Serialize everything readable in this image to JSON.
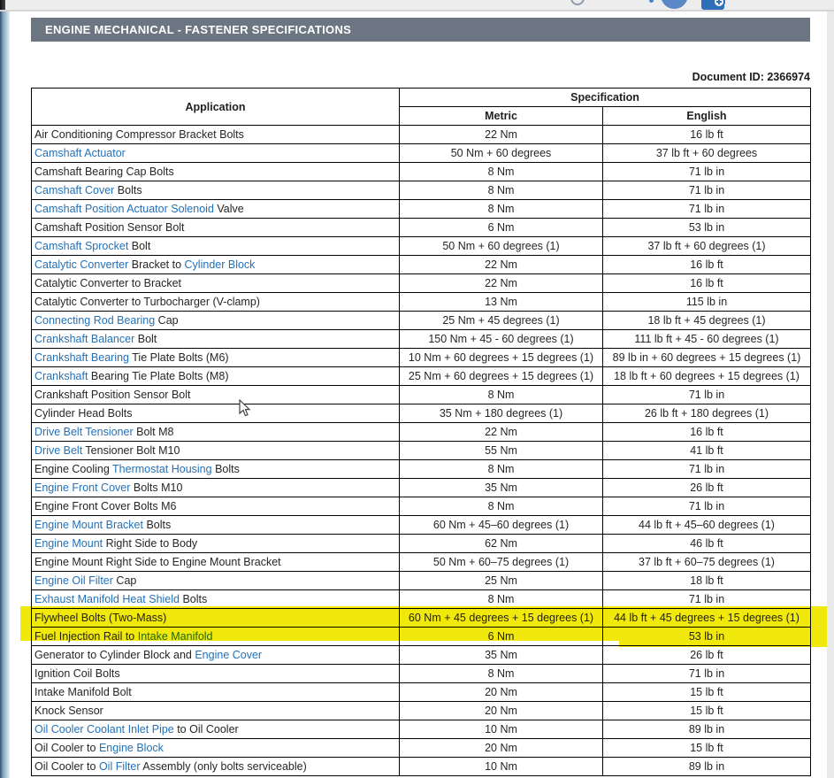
{
  "topbar": {
    "icons": [
      {
        "name": "arc-icon"
      },
      {
        "name": "notification-dot-icon"
      },
      {
        "name": "avatar-circle-icon"
      },
      {
        "name": "bookmark-add-icon"
      }
    ]
  },
  "header": {
    "title": "ENGINE MECHANICAL - FASTENER SPECIFICATIONS"
  },
  "document": {
    "id_label": "Document ID: 2366974"
  },
  "colors": {
    "link": "#2471b8",
    "highlight": "#f2e90c",
    "title_bar_bg": "#6b7682",
    "top_strip_bg": "#ededed",
    "left_strip_blue": "#7fa2bf",
    "icon_blue": "#2d6fb9",
    "avatar_blue": "#5c87c6",
    "border": "#000000"
  },
  "table": {
    "headers": {
      "application": "Application",
      "specification": "Specification",
      "metric": "Metric",
      "english": "English"
    },
    "rows": [
      {
        "segments": [
          {
            "text": "Air Conditioning Compressor Bracket Bolts",
            "link": false
          }
        ],
        "metric": "22 Nm",
        "english": "16 lb ft",
        "highlighted": false
      },
      {
        "segments": [
          {
            "text": "Camshaft Actuator",
            "link": true
          }
        ],
        "metric": "50 Nm + 60 degrees",
        "english": "37 lb ft + 60 degrees",
        "highlighted": false
      },
      {
        "segments": [
          {
            "text": "Camshaft Bearing Cap Bolts",
            "link": false
          }
        ],
        "metric": "8 Nm",
        "english": "71 lb in",
        "highlighted": false
      },
      {
        "segments": [
          {
            "text": "Camshaft Cover",
            "link": true
          },
          {
            "text": " Bolts",
            "link": false
          }
        ],
        "metric": "8 Nm",
        "english": "71 lb in",
        "highlighted": false
      },
      {
        "segments": [
          {
            "text": "Camshaft Position Actuator Solenoid",
            "link": true
          },
          {
            "text": " Valve",
            "link": false
          }
        ],
        "metric": "8 Nm",
        "english": "71 lb in",
        "highlighted": false
      },
      {
        "segments": [
          {
            "text": "Camshaft Position Sensor Bolt",
            "link": false
          }
        ],
        "metric": "6 Nm",
        "english": "53 lb in",
        "highlighted": false
      },
      {
        "segments": [
          {
            "text": "Camshaft Sprocket",
            "link": true
          },
          {
            "text": " Bolt",
            "link": false
          }
        ],
        "metric": "50 Nm + 60 degrees (1)",
        "english": "37 lb ft + 60 degrees (1)",
        "highlighted": false
      },
      {
        "segments": [
          {
            "text": "Catalytic Converter",
            "link": true
          },
          {
            "text": " Bracket to ",
            "link": false
          },
          {
            "text": "Cylinder Block",
            "link": true
          }
        ],
        "metric": "22 Nm",
        "english": "16 lb ft",
        "highlighted": false
      },
      {
        "segments": [
          {
            "text": "Catalytic Converter to Bracket",
            "link": false
          }
        ],
        "metric": "22 Nm",
        "english": "16 lb ft",
        "highlighted": false
      },
      {
        "segments": [
          {
            "text": "Catalytic Converter to Turbocharger (V-clamp)",
            "link": false
          }
        ],
        "metric": "13 Nm",
        "english": "115 lb in",
        "highlighted": false
      },
      {
        "segments": [
          {
            "text": "Connecting Rod Bearing",
            "link": true
          },
          {
            "text": " Cap",
            "link": false
          }
        ],
        "metric": "25 Nm + 45 degrees (1)",
        "english": "18 lb ft + 45 degrees (1)",
        "highlighted": false
      },
      {
        "segments": [
          {
            "text": "Crankshaft Balancer",
            "link": true
          },
          {
            "text": " Bolt",
            "link": false
          }
        ],
        "metric": "150 Nm + 45 - 60 degrees (1)",
        "english": "111 lb ft + 45 - 60 degrees (1)",
        "highlighted": false
      },
      {
        "segments": [
          {
            "text": "Crankshaft Bearing",
            "link": true
          },
          {
            "text": " Tie Plate Bolts (M6)",
            "link": false
          }
        ],
        "metric": "10 Nm + 60 degrees + 15 degrees (1)",
        "english": "89 lb in + 60 degrees + 15 degrees (1)",
        "highlighted": false
      },
      {
        "segments": [
          {
            "text": "Crankshaft",
            "link": true
          },
          {
            "text": " Bearing Tie Plate Bolts (M8)",
            "link": false
          }
        ],
        "metric": "25 Nm + 60 degrees + 15 degrees (1)",
        "english": "18 lb ft + 60 degrees + 15 degrees (1)",
        "highlighted": false
      },
      {
        "segments": [
          {
            "text": "Crankshaft Position Sensor Bolt",
            "link": false
          }
        ],
        "metric": "8 Nm",
        "english": "71 lb in",
        "highlighted": false
      },
      {
        "segments": [
          {
            "text": "Cylinder Head Bolts",
            "link": false
          }
        ],
        "metric": "35 Nm + 180 degrees (1)",
        "english": "26 lb ft + 180 degrees (1)",
        "highlighted": false
      },
      {
        "segments": [
          {
            "text": "Drive Belt Tensioner",
            "link": true
          },
          {
            "text": " Bolt M8",
            "link": false
          }
        ],
        "metric": "22 Nm",
        "english": "16 lb ft",
        "highlighted": false
      },
      {
        "segments": [
          {
            "text": "Drive Belt",
            "link": true
          },
          {
            "text": " Tensioner Bolt M10",
            "link": false
          }
        ],
        "metric": "55 Nm",
        "english": "41 lb ft",
        "highlighted": false
      },
      {
        "segments": [
          {
            "text": "Engine Cooling ",
            "link": false
          },
          {
            "text": "Thermostat Housing",
            "link": true
          },
          {
            "text": " Bolts",
            "link": false
          }
        ],
        "metric": "8 Nm",
        "english": "71 lb in",
        "highlighted": false
      },
      {
        "segments": [
          {
            "text": "Engine Front Cover",
            "link": true
          },
          {
            "text": " Bolts M10",
            "link": false
          }
        ],
        "metric": "35 Nm",
        "english": "26 lb ft",
        "highlighted": false
      },
      {
        "segments": [
          {
            "text": "Engine Front Cover Bolts M6",
            "link": false
          }
        ],
        "metric": "8 Nm",
        "english": "71 lb in",
        "highlighted": false
      },
      {
        "segments": [
          {
            "text": "Engine Mount Bracket",
            "link": true
          },
          {
            "text": " Bolts",
            "link": false
          }
        ],
        "metric": "60 Nm + 45–60 degrees (1)",
        "english": "44 lb ft + 45–60 degrees (1)",
        "highlighted": false
      },
      {
        "segments": [
          {
            "text": "Engine Mount",
            "link": true
          },
          {
            "text": " Right Side to Body",
            "link": false
          }
        ],
        "metric": "62 Nm",
        "english": "46 lb ft",
        "highlighted": false
      },
      {
        "segments": [
          {
            "text": "Engine Mount Right Side to Engine Mount Bracket",
            "link": false
          }
        ],
        "metric": "50 Nm + 60–75 degrees (1)",
        "english": "37 lb ft + 60–75 degrees (1)",
        "highlighted": false
      },
      {
        "segments": [
          {
            "text": "Engine Oil Filter",
            "link": true
          },
          {
            "text": " Cap",
            "link": false
          }
        ],
        "metric": "25 Nm",
        "english": "18 lb ft",
        "highlighted": false
      },
      {
        "segments": [
          {
            "text": "Exhaust Manifold Heat Shield",
            "link": true
          },
          {
            "text": " Bolts",
            "link": false
          }
        ],
        "metric": "8 Nm",
        "english": "71 lb in",
        "highlighted": false
      },
      {
        "segments": [
          {
            "text": "Flywheel Bolts (Two-Mass)",
            "link": false
          }
        ],
        "metric": "60 Nm + 45 degrees + 15 degrees (1)",
        "english": "44 lb ft + 45 degrees + 15 degrees (1)",
        "highlighted": true
      },
      {
        "segments": [
          {
            "text": "Fuel Injection Rail to ",
            "link": false
          },
          {
            "text": "Intake Manifold",
            "link": true
          }
        ],
        "metric": "6 Nm",
        "english": "53 lb in",
        "highlighted": true
      },
      {
        "segments": [
          {
            "text": "Generator to Cylinder Block and ",
            "link": false
          },
          {
            "text": "Engine Cover",
            "link": true
          }
        ],
        "metric": "35 Nm",
        "english": "26 lb ft",
        "highlighted": false
      },
      {
        "segments": [
          {
            "text": "Ignition Coil Bolts",
            "link": false
          }
        ],
        "metric": "8 Nm",
        "english": "71 lb in",
        "highlighted": false
      },
      {
        "segments": [
          {
            "text": "Intake Manifold Bolt",
            "link": false
          }
        ],
        "metric": "20 Nm",
        "english": "15 lb ft",
        "highlighted": false
      },
      {
        "segments": [
          {
            "text": "Knock Sensor",
            "link": false
          }
        ],
        "metric": "20 Nm",
        "english": "15 lb ft",
        "highlighted": false
      },
      {
        "segments": [
          {
            "text": "Oil Cooler Coolant Inlet Pipe",
            "link": true
          },
          {
            "text": " to Oil Cooler",
            "link": false
          }
        ],
        "metric": "10 Nm",
        "english": "89 lb in",
        "highlighted": false
      },
      {
        "segments": [
          {
            "text": "Oil Cooler to ",
            "link": false
          },
          {
            "text": "Engine Block",
            "link": true
          }
        ],
        "metric": "20 Nm",
        "english": "15 lb ft",
        "highlighted": false
      },
      {
        "segments": [
          {
            "text": "Oil Cooler to ",
            "link": false
          },
          {
            "text": "Oil Filter",
            "link": true
          },
          {
            "text": " Assembly (only bolts serviceable)",
            "link": false
          }
        ],
        "metric": "10 Nm",
        "english": "89 lb in",
        "highlighted": false
      }
    ]
  }
}
